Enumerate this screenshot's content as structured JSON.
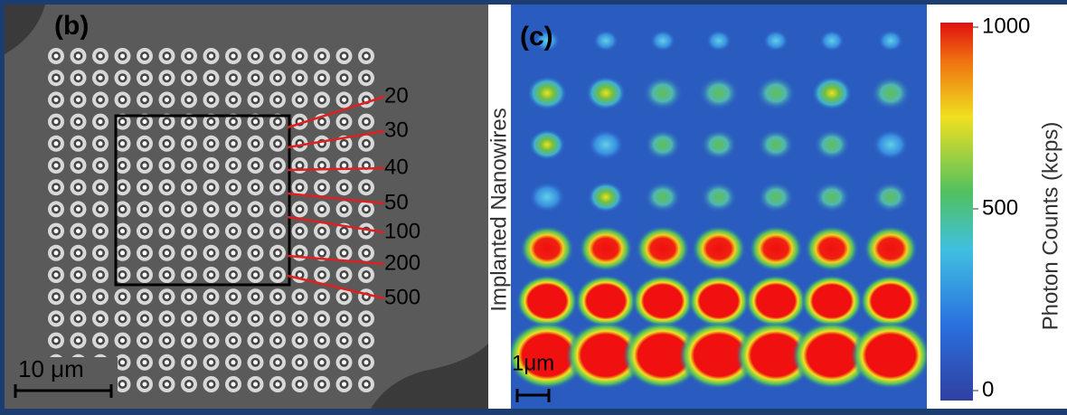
{
  "panels": [
    {
      "label": "(b)",
      "scale_bar": "10 μm",
      "dose_labels": [
        "20",
        "30",
        "40",
        "50",
        "100",
        "200",
        "500"
      ]
    },
    {
      "label": "(c)",
      "y_label": "Implanted Nanowires",
      "scale_bar": "1μm",
      "colorbar": {
        "title": "Photon Counts (kcps)",
        "range": [
          0,
          1000
        ],
        "ticks": [
          0,
          500,
          1000
        ]
      }
    }
  ]
}
